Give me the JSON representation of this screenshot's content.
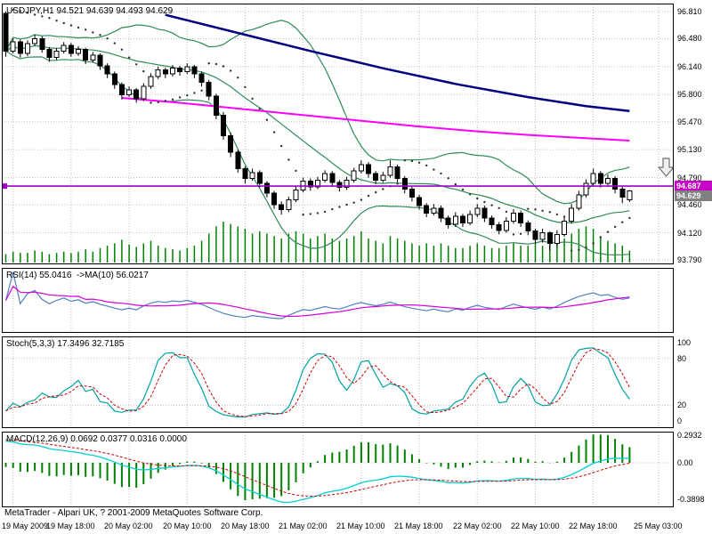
{
  "main_chart": {
    "title": "USDJPY,H1 94.521 94.639 94.493 94.629",
    "price_scale_ticks": [
      "96.810",
      "96.480",
      "96.140",
      "95.800",
      "95.470",
      "95.130",
      "94.790",
      "94.460",
      "94.120",
      "93.790"
    ],
    "hline": {
      "price": 94.687,
      "label": "94.687"
    },
    "bid_tag": "94.629"
  },
  "rsi_panel": {
    "label": "RSI(14) 55.0416  ->MA(10) 56.0217",
    "value": 55.0416,
    "ma_value": 56.0217
  },
  "stoch_panel": {
    "label": "Stoch(5,3,3) 17.3496 32.7185",
    "k": 17.3496,
    "d": 32.7185,
    "scale_ticks": [
      "100",
      "80",
      "20",
      "0"
    ]
  },
  "macd_panel": {
    "label": "MACD(12,26,9) 0.0692 0.0377 0.0316 0.0000",
    "scale_ticks": [
      "0.2932",
      "0.00",
      "-0.3898"
    ]
  },
  "footer": {
    "copyright": "MetaTrader - Alpari UK, ? 2001-2009 MetaQuotes Software Corp."
  },
  "chart_data": {
    "type": "candlestick",
    "symbol": "USDJPY",
    "timeframe": "H1",
    "last_bar_ohlc": {
      "open": 94.521,
      "high": 94.639,
      "low": 94.493,
      "close": 94.629
    },
    "price_axis": {
      "min": 93.79,
      "max": 96.81
    },
    "time_axis": [
      {
        "label": "19 May 2009",
        "bar": 1
      },
      {
        "label": "19 May 18:00",
        "bar": 9
      },
      {
        "label": "20 May 02:00",
        "bar": 17
      },
      {
        "label": "20 May 10:00",
        "bar": 25
      },
      {
        "label": "20 May 18:00",
        "bar": 33
      },
      {
        "label": "21 May 02:00",
        "bar": 41
      },
      {
        "label": "21 May 10:00",
        "bar": 49
      },
      {
        "label": "21 May 18:00",
        "bar": 57
      },
      {
        "label": "22 May 02:00",
        "bar": 65
      },
      {
        "label": "22 May 10:00",
        "bar": 73
      },
      {
        "label": "22 May 18:00",
        "bar": 81
      },
      {
        "label": "25 May 03:00",
        "bar": 90
      }
    ],
    "ohlc": [
      [
        96.79,
        96.81,
        96.26,
        96.33
      ],
      [
        96.33,
        96.48,
        96.3,
        96.44
      ],
      [
        96.44,
        96.47,
        96.25,
        96.3
      ],
      [
        96.3,
        96.46,
        96.27,
        96.42
      ],
      [
        96.42,
        96.53,
        96.39,
        96.48
      ],
      [
        96.48,
        96.51,
        96.31,
        96.35
      ],
      [
        96.35,
        96.38,
        96.2,
        96.25
      ],
      [
        96.25,
        96.37,
        96.22,
        96.33
      ],
      [
        96.33,
        96.44,
        96.3,
        96.4
      ],
      [
        96.4,
        96.43,
        96.26,
        96.3
      ],
      [
        96.3,
        96.39,
        96.27,
        96.35
      ],
      [
        96.35,
        96.37,
        96.17,
        96.22
      ],
      [
        96.22,
        96.32,
        96.19,
        96.28
      ],
      [
        96.28,
        96.3,
        96.1,
        96.15
      ],
      [
        96.15,
        96.18,
        96.0,
        96.05
      ],
      [
        96.05,
        96.08,
        95.87,
        95.92
      ],
      [
        95.92,
        95.95,
        95.74,
        95.8
      ],
      [
        95.8,
        95.9,
        95.77,
        95.86
      ],
      [
        95.86,
        95.88,
        95.7,
        95.75
      ],
      [
        95.75,
        95.94,
        95.72,
        95.9
      ],
      [
        95.9,
        96.06,
        95.87,
        96.02
      ],
      [
        96.02,
        96.14,
        95.99,
        96.1
      ],
      [
        96.1,
        96.13,
        96.0,
        96.05
      ],
      [
        96.05,
        96.16,
        96.02,
        96.12
      ],
      [
        96.12,
        96.15,
        96.03,
        96.08
      ],
      [
        96.08,
        96.18,
        96.05,
        96.14
      ],
      [
        96.14,
        96.16,
        96.0,
        96.05
      ],
      [
        96.05,
        96.08,
        95.9,
        95.95
      ],
      [
        95.95,
        95.98,
        95.73,
        95.78
      ],
      [
        95.78,
        95.81,
        95.5,
        95.55
      ],
      [
        95.55,
        95.59,
        95.25,
        95.3
      ],
      [
        95.3,
        95.34,
        95.04,
        95.1
      ],
      [
        95.1,
        95.13,
        94.85,
        94.9
      ],
      [
        94.9,
        94.93,
        94.72,
        94.78
      ],
      [
        94.78,
        94.9,
        94.75,
        94.85
      ],
      [
        94.85,
        94.88,
        94.67,
        94.72
      ],
      [
        94.72,
        94.75,
        94.55,
        94.6
      ],
      [
        94.6,
        94.63,
        94.41,
        94.46
      ],
      [
        94.46,
        94.5,
        94.34,
        94.4
      ],
      [
        94.4,
        94.56,
        94.37,
        94.52
      ],
      [
        94.52,
        94.68,
        94.49,
        94.64
      ],
      [
        94.64,
        94.79,
        94.61,
        94.75
      ],
      [
        94.75,
        94.78,
        94.63,
        94.68
      ],
      [
        94.68,
        94.8,
        94.65,
        94.76
      ],
      [
        94.76,
        94.88,
        94.73,
        94.84
      ],
      [
        94.84,
        94.87,
        94.68,
        94.73
      ],
      [
        94.73,
        94.76,
        94.62,
        94.67
      ],
      [
        94.67,
        94.8,
        94.64,
        94.76
      ],
      [
        94.76,
        94.91,
        94.73,
        94.87
      ],
      [
        94.87,
        95.0,
        94.84,
        94.95
      ],
      [
        94.95,
        94.98,
        94.79,
        94.84
      ],
      [
        94.84,
        94.87,
        94.71,
        94.76
      ],
      [
        94.76,
        94.86,
        94.73,
        94.82
      ],
      [
        94.82,
        95.0,
        94.79,
        94.92
      ],
      [
        94.92,
        94.95,
        94.73,
        94.78
      ],
      [
        94.78,
        94.81,
        94.6,
        94.65
      ],
      [
        94.65,
        94.68,
        94.5,
        94.55
      ],
      [
        94.55,
        94.58,
        94.4,
        94.45
      ],
      [
        94.45,
        94.48,
        94.31,
        94.36
      ],
      [
        94.36,
        94.47,
        94.33,
        94.42
      ],
      [
        94.42,
        94.45,
        94.25,
        94.3
      ],
      [
        94.3,
        94.33,
        94.17,
        94.22
      ],
      [
        94.22,
        94.37,
        94.19,
        94.32
      ],
      [
        94.32,
        94.35,
        94.19,
        94.24
      ],
      [
        94.24,
        94.39,
        94.21,
        94.34
      ],
      [
        94.34,
        94.47,
        94.31,
        94.42
      ],
      [
        94.42,
        94.45,
        94.25,
        94.3
      ],
      [
        94.3,
        94.33,
        94.17,
        94.22
      ],
      [
        94.22,
        94.25,
        94.1,
        94.15
      ],
      [
        94.15,
        94.31,
        94.12,
        94.26
      ],
      [
        94.26,
        94.41,
        94.23,
        94.36
      ],
      [
        94.36,
        94.39,
        94.19,
        94.24
      ],
      [
        94.24,
        94.27,
        94.09,
        94.14
      ],
      [
        94.14,
        94.17,
        93.99,
        94.04
      ],
      [
        94.04,
        94.17,
        94.0,
        94.12
      ],
      [
        94.12,
        94.14,
        93.9,
        93.99
      ],
      [
        93.99,
        94.15,
        93.95,
        94.1
      ],
      [
        94.1,
        94.31,
        94.07,
        94.26
      ],
      [
        94.26,
        94.47,
        94.23,
        94.42
      ],
      [
        94.42,
        94.63,
        94.39,
        94.58
      ],
      [
        94.58,
        94.77,
        94.55,
        94.72
      ],
      [
        94.72,
        94.9,
        94.69,
        94.84
      ],
      [
        94.84,
        94.87,
        94.67,
        94.72
      ],
      [
        94.72,
        94.83,
        94.69,
        94.78
      ],
      [
        94.78,
        94.81,
        94.6,
        94.65
      ],
      [
        94.65,
        94.68,
        94.48,
        94.55
      ],
      [
        94.521,
        94.639,
        94.493,
        94.629
      ]
    ],
    "volumes": [
      7,
      9,
      8,
      8,
      10,
      9,
      7,
      8,
      9,
      8,
      9,
      11,
      9,
      12,
      14,
      16,
      19,
      15,
      13,
      16,
      18,
      14,
      12,
      11,
      10,
      12,
      14,
      18,
      24,
      30,
      34,
      32,
      30,
      28,
      24,
      26,
      24,
      22,
      20,
      24,
      26,
      24,
      20,
      22,
      24,
      20,
      18,
      20,
      22,
      26,
      20,
      18,
      16,
      22,
      20,
      18,
      16,
      14,
      16,
      14,
      16,
      14,
      12,
      12,
      14,
      16,
      14,
      12,
      12,
      14,
      16,
      14,
      14,
      16,
      14,
      18,
      16,
      20,
      24,
      28,
      30,
      28,
      22,
      18,
      16,
      14,
      10
    ],
    "overlays": {
      "bollinger": {
        "period": 20,
        "deviation": 2
      },
      "ma_navy": {
        "points": [
          {
            "bar": 22,
            "price": 96.77
          },
          {
            "bar": 32,
            "price": 96.55
          },
          {
            "bar": 42,
            "price": 96.33
          },
          {
            "bar": 52,
            "price": 96.12
          },
          {
            "bar": 62,
            "price": 95.93
          },
          {
            "bar": 72,
            "price": 95.77
          },
          {
            "bar": 80,
            "price": 95.66
          },
          {
            "bar": 86,
            "price": 95.6
          }
        ]
      },
      "ma_magenta": {
        "points": [
          {
            "bar": 16,
            "price": 95.76
          },
          {
            "bar": 24,
            "price": 95.7
          },
          {
            "bar": 32,
            "price": 95.63
          },
          {
            "bar": 40,
            "price": 95.56
          },
          {
            "bar": 48,
            "price": 95.49
          },
          {
            "bar": 56,
            "price": 95.42
          },
          {
            "bar": 64,
            "price": 95.36
          },
          {
            "bar": 72,
            "price": 95.31
          },
          {
            "bar": 80,
            "price": 95.27
          },
          {
            "bar": 86,
            "price": 95.24
          }
        ]
      },
      "psar": {
        "step": 0.02,
        "max": 0.2
      }
    },
    "colors": {
      "grid": "#C0C0C0",
      "bands": "#2E8B57",
      "ma_navy": "#000080",
      "ma_magenta": "#FF00FF",
      "sar": "#303030",
      "volume": "#008000",
      "bull": "#FFFFFF",
      "bear": "#000000",
      "wick": "#000000",
      "hline": "#A000C8",
      "hline_tag": "#C800C8",
      "bid_tag": "#808080",
      "rsi": "#4F81BD",
      "rsi_ma": "#D800D8",
      "stoch_k": "#00A3A3",
      "stoch_d": "#CC0000",
      "macd_line": "#00CFCF",
      "macd_signal": "#CC0000",
      "histogram": "#008000"
    }
  }
}
